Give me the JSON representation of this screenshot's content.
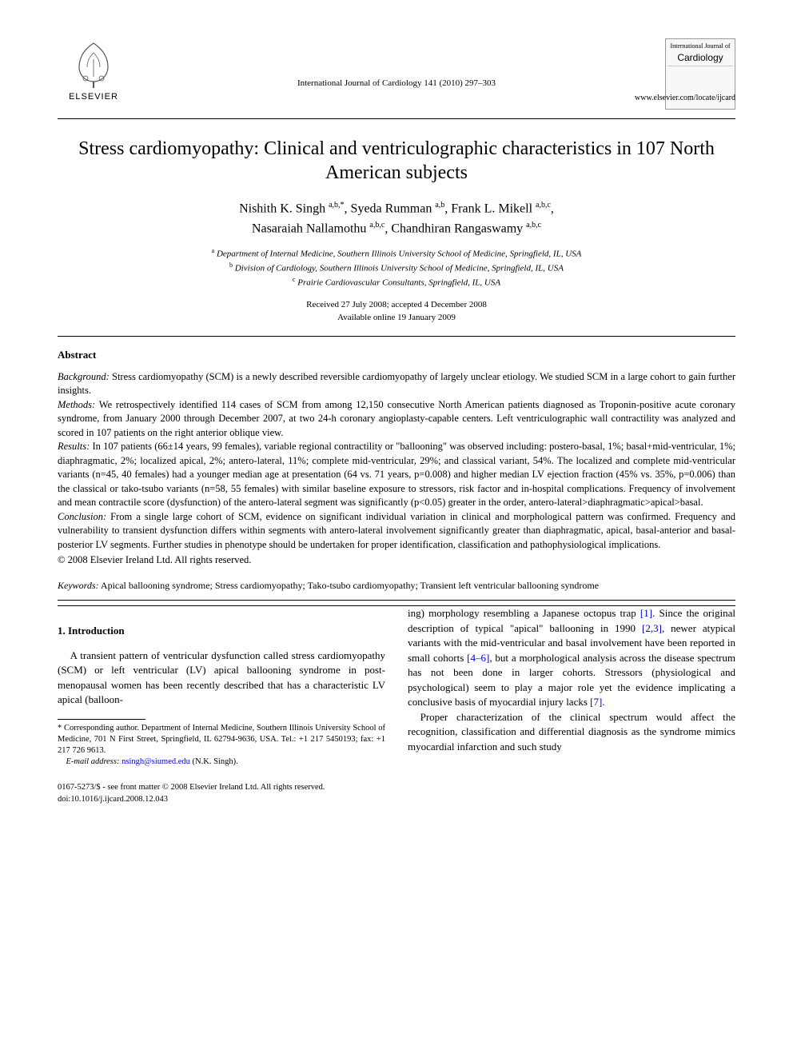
{
  "publisher": {
    "name": "ELSEVIER",
    "citation": "International Journal of Cardiology 141 (2010) 297–303",
    "journal_small": "International Journal of",
    "journal_big": "Cardiology",
    "url": "www.elsevier.com/locate/ijcard"
  },
  "title": "Stress cardiomyopathy: Clinical and ventriculographic characteristics in 107 North American subjects",
  "authors_html": "Nishith K. Singh <sup>a,b,*</sup>, Syeda Rumman <sup>a,b</sup>, Frank L. Mikell <sup>a,b,c</sup>,<br>Nasaraiah Nallamothu <sup>a,b,c</sup>, Chandhiran Rangaswamy <sup>a,b,c</sup>",
  "affiliations": [
    {
      "marker": "a",
      "text": "Department of Internal Medicine, Southern Illinois University School of Medicine, Springfield, IL, USA"
    },
    {
      "marker": "b",
      "text": "Division of Cardiology, Southern Illinois University School of Medicine, Springfield, IL, USA"
    },
    {
      "marker": "c",
      "text": "Prairie Cardiovascular Consultants, Springfield, IL, USA"
    }
  ],
  "dates": {
    "received_accepted": "Received 27 July 2008; accepted 4 December 2008",
    "online": "Available online 19 January 2009"
  },
  "abstract": {
    "heading": "Abstract",
    "segments": [
      {
        "label": "Background:",
        "text": "Stress cardiomyopathy (SCM) is a newly described reversible cardiomyopathy of largely unclear etiology. We studied SCM in a large cohort to gain further insights."
      },
      {
        "label": "Methods:",
        "text": "We retrospectively identified 114 cases of SCM from among 12,150 consecutive North American patients diagnosed as Troponin-positive acute coronary syndrome, from January 2000 through December 2007, at two 24-h coronary angioplasty-capable centers. Left ventriculographic wall contractility was analyzed and scored in 107 patients on the right anterior oblique view."
      },
      {
        "label": "Results:",
        "text": "In 107 patients (66±14 years, 99 females), variable regional contractility or \"ballooning\" was observed including: postero-basal, 1%; basal+mid-ventricular, 1%; diaphragmatic, 2%; localized apical, 2%; antero-lateral, 11%; complete mid-ventricular, 29%; and classical variant, 54%. The localized and complete mid-ventricular variants (n=45, 40 females) had a younger median age at presentation (64 vs. 71 years, p=0.008) and higher median LV ejection fraction (45% vs. 35%, p=0.006) than the classical or tako-tsubo variants (n=58, 55 females) with similar baseline exposure to stressors, risk factor and in-hospital complications. Frequency of involvement and mean contractile score (dysfunction) of the antero-lateral segment was significantly (p<0.05) greater in the order, antero-lateral>diaphragmatic>apical>basal."
      },
      {
        "label": "Conclusion:",
        "text": "From a single large cohort of SCM, evidence on significant individual variation in clinical and morphological pattern was confirmed. Frequency and vulnerability to transient dysfunction differs within segments with antero-lateral involvement significantly greater than diaphragmatic, apical, basal-anterior and basal-posterior LV segments. Further studies in phenotype should be undertaken for proper identification, classification and pathophysiological implications."
      }
    ],
    "copyright": "© 2008 Elsevier Ireland Ltd. All rights reserved."
  },
  "keywords": {
    "label": "Keywords:",
    "text": "Apical ballooning syndrome; Stress cardiomyopathy; Tako-tsubo cardiomyopathy; Transient left ventricular ballooning syndrome"
  },
  "section1": {
    "heading": "1. Introduction",
    "para1_pre": "A transient pattern of ventricular dysfunction called stress cardiomyopathy (SCM) or left ventricular (LV) apical ballooning syndrome in post-menopausal women has been recently described that has a characteristic LV apical (balloon-",
    "col2_span1": "ing) morphology resembling a Japanese octopus trap ",
    "ref1": "[1]",
    "col2_span2": ". Since the original description of typical \"apical\" ballooning in 1990 ",
    "ref23": "[2,3]",
    "col2_span3": ", newer atypical variants with the mid-ventricular and basal involvement have been reported in small cohorts ",
    "ref46": "[4–6]",
    "col2_span4": ", but a morphological analysis across the disease spectrum has not been done in larger cohorts. Stressors (physiological and psychological) seem to play a major role yet the evidence implicating a conclusive basis of myocardial injury lacks ",
    "ref7": "[7]",
    "col2_span5": ".",
    "para2": "Proper characterization of the clinical spectrum would affect the recognition, classification and differential diagnosis as the syndrome mimics myocardial infarction and such study"
  },
  "footnotes": {
    "corr_label": "* Corresponding author.",
    "corr_text": " Department of Internal Medicine, Southern Illinois University School of Medicine, 701 N First Street, Springfield, IL 62794-9636, USA. Tel.: +1 217 5450193; fax: +1 217 726 9613.",
    "email_label": "E-mail address:",
    "email_value": "nsingh@siumed.edu",
    "email_who": " (N.K. Singh)."
  },
  "footer": {
    "line1": "0167-5273/$ - see front matter © 2008 Elsevier Ireland Ltd. All rights reserved.",
    "line2": "doi:10.1016/j.ijcard.2008.12.043"
  },
  "colors": {
    "link": "#0000cc",
    "text": "#000000",
    "background": "#ffffff"
  },
  "fontsizes": {
    "title": 24,
    "authors": 16,
    "body": 13,
    "abstract": 12.5,
    "affil": 11,
    "footnote": 10.5
  }
}
